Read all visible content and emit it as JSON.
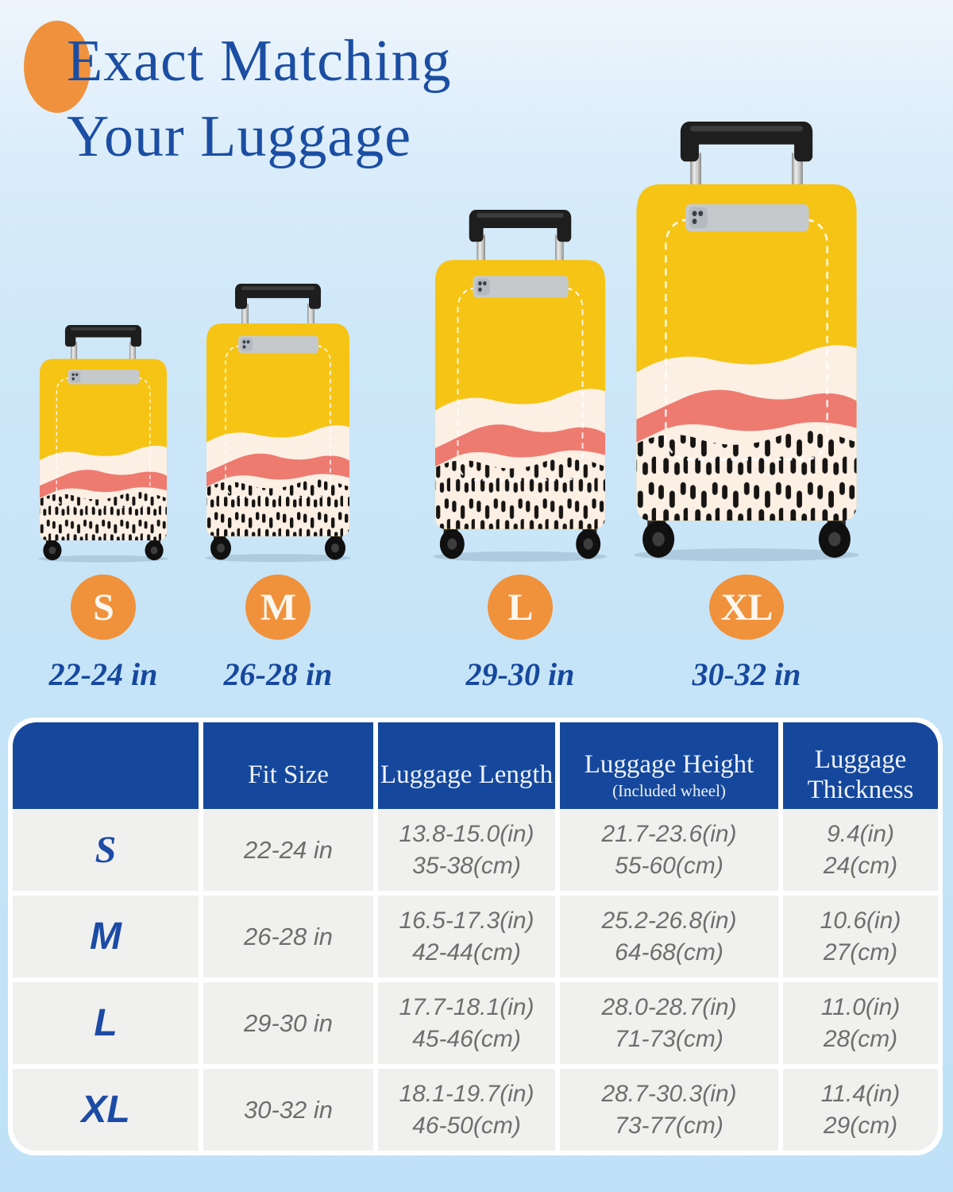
{
  "title": {
    "line1": "Exact Matching",
    "line2": "Your Luggage"
  },
  "sizes": [
    {
      "badge": "S",
      "range": "22-24 in"
    },
    {
      "badge": "M",
      "range": "26-28 in"
    },
    {
      "badge": "L",
      "range": "29-30 in"
    },
    {
      "badge": "XL",
      "range": "30-32 in"
    }
  ],
  "table": {
    "headers": {
      "size": "",
      "fit": "Fit Size",
      "length": "Luggage Length",
      "height": "Luggage Height",
      "height_note": "(Included wheel)",
      "thickness": "Luggage Thickness"
    },
    "rows": [
      {
        "size": "S",
        "fit": "22-24 in",
        "length_in": "13.8-15.0(in)",
        "length_cm": "35-38(cm)",
        "height_in": "21.7-23.6(in)",
        "height_cm": "55-60(cm)",
        "thick_in": "9.4(in)",
        "thick_cm": "24(cm)"
      },
      {
        "size": "M",
        "fit": "26-28 in",
        "length_in": "16.5-17.3(in)",
        "length_cm": "42-44(cm)",
        "height_in": "25.2-26.8(in)",
        "height_cm": "64-68(cm)",
        "thick_in": "10.6(in)",
        "thick_cm": "27(cm)"
      },
      {
        "size": "L",
        "fit": "29-30 in",
        "length_in": "17.7-18.1(in)",
        "length_cm": "45-46(cm)",
        "height_in": "28.0-28.7(in)",
        "height_cm": "71-73(cm)",
        "thick_in": "11.0(in)",
        "thick_cm": "28(cm)"
      },
      {
        "size": "XL",
        "fit": "30-32 in",
        "length_in": "18.1-19.7(in)",
        "length_cm": "46-50(cm)",
        "height_in": "28.7-30.3(in)",
        "height_cm": "73-77(cm)",
        "thick_in": "11.4(in)",
        "thick_cm": "29(cm)"
      }
    ]
  },
  "colors": {
    "background_blue": "#C6E4F7",
    "title_navy": "#1B4EA3",
    "accent_orange": "#F0913B",
    "header_blue": "#15489C",
    "cell_gray": "#F0F0EF",
    "text_gray": "#6E6E6E",
    "cover_yellow": "#F5C415",
    "cover_cream": "#FCEFE4",
    "cover_coral": "#EE7B70",
    "cover_dots": "#171513"
  }
}
